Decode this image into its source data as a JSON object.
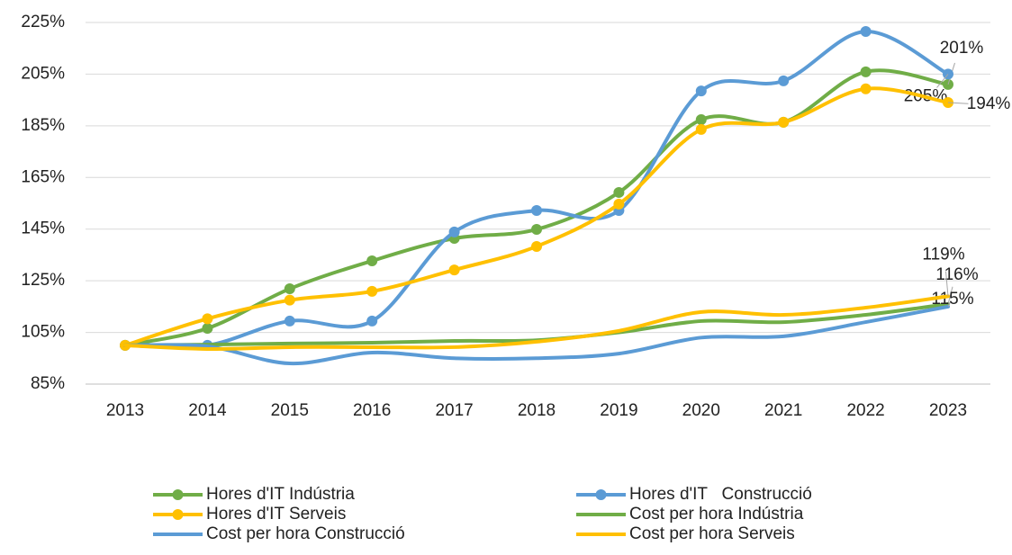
{
  "chart_data": {
    "type": "line",
    "x": [
      2013,
      2014,
      2015,
      2016,
      2017,
      2018,
      2019,
      2020,
      2021,
      2022,
      2023
    ],
    "series": [
      {
        "name": "Hores d'IT Indústria",
        "color": "#70ad47",
        "marker": true,
        "values": [
          100,
          106.6,
          121.9,
          132.7,
          141.4,
          144.9,
          159.2,
          187.4,
          186.4,
          205.9,
          201
        ],
        "value_labels": [
          null,
          null,
          null,
          null,
          null,
          null,
          null,
          null,
          null,
          null,
          "201%"
        ]
      },
      {
        "name": "Hores d'IT   Construcció",
        "color": "#5b9bd5",
        "marker": true,
        "values": [
          100,
          100,
          109.4,
          109.4,
          143.9,
          152.2,
          152.2,
          198.5,
          202.4,
          221.5,
          205
        ],
        "value_labels": [
          null,
          null,
          null,
          null,
          null,
          null,
          null,
          null,
          null,
          null,
          "205%"
        ]
      },
      {
        "name": "Hores d'IT Serveis",
        "color": "#ffc000",
        "marker": true,
        "values": [
          100,
          110.3,
          117.5,
          120.9,
          129.2,
          138.3,
          154.7,
          183.6,
          186.4,
          199.3,
          194
        ],
        "value_labels": [
          null,
          null,
          null,
          null,
          null,
          null,
          null,
          null,
          null,
          null,
          "194%"
        ]
      },
      {
        "name": "Cost per hora Indústria",
        "color": "#70ad47",
        "marker": false,
        "values": [
          100,
          100.3,
          100.7,
          101,
          101.7,
          102,
          105,
          109.4,
          109,
          111.8,
          116
        ],
        "value_labels": [
          null,
          null,
          null,
          null,
          null,
          null,
          null,
          null,
          null,
          null,
          "116%"
        ]
      },
      {
        "name": "Cost per hora Construcció",
        "color": "#5b9bd5",
        "marker": false,
        "values": [
          100,
          99.6,
          93,
          97.2,
          95,
          95,
          96.8,
          103,
          103.5,
          109,
          115
        ],
        "value_labels": [
          null,
          null,
          null,
          null,
          null,
          null,
          null,
          null,
          null,
          null,
          "115%"
        ]
      },
      {
        "name": "Cost per hora Serveis",
        "color": "#ffc000",
        "marker": false,
        "values": [
          100,
          98.6,
          99.3,
          99.3,
          99.3,
          101.4,
          105.6,
          112.9,
          111.8,
          114.6,
          119
        ],
        "value_labels": [
          null,
          null,
          null,
          null,
          null,
          null,
          null,
          null,
          null,
          null,
          "119%"
        ]
      }
    ],
    "ylim": [
      85,
      225
    ],
    "yticks": [
      {
        "value": 85,
        "label": "85%"
      },
      {
        "value": 105,
        "label": "105%"
      },
      {
        "value": 125,
        "label": "125%"
      },
      {
        "value": 145,
        "label": "145%"
      },
      {
        "value": 165,
        "label": "165%"
      },
      {
        "value": 185,
        "label": "185%"
      },
      {
        "value": 205,
        "label": "205%"
      },
      {
        "value": 225,
        "label": "225%"
      }
    ],
    "grid": true,
    "legend": "bottom"
  }
}
